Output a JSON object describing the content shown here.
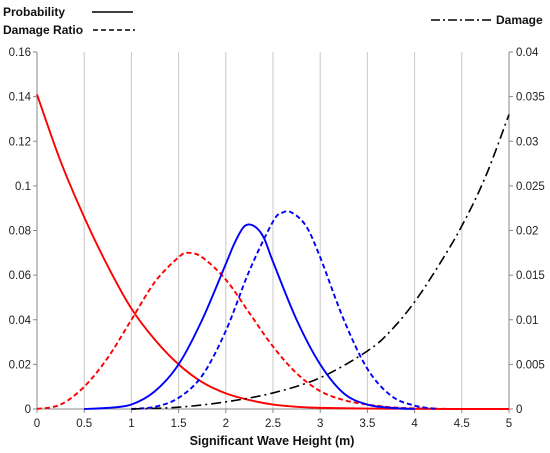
{
  "chart_data": {
    "type": "line",
    "xlabel": "Significant Wave Height (m)",
    "xlim": [
      0,
      5
    ],
    "x_ticks": [
      "0",
      "0.5",
      "1",
      "1.5",
      "2",
      "2.5",
      "3",
      "3.5",
      "4",
      "4.5",
      "5"
    ],
    "ylim_left": [
      0,
      0.16
    ],
    "y_left_ticks": [
      "0",
      "0.02",
      "0.04",
      "0.06",
      "0.08",
      "0.1",
      "0.12",
      "0.14",
      "0.16"
    ],
    "ylim_right": [
      0,
      0.04
    ],
    "y_right_ticks": [
      "0",
      "0.005",
      "0.01",
      "0.015",
      "0.02",
      "0.025",
      "0.03",
      "0.035",
      "0.04"
    ],
    "grid": "vertical",
    "legend": [
      {
        "label": "Probability",
        "style": "solid",
        "position": "top-left"
      },
      {
        "label": "Damage Ratio",
        "style": "dashed",
        "position": "top-left"
      },
      {
        "label": "Damage",
        "style": "dash-dot",
        "position": "top-right"
      }
    ],
    "series": [
      {
        "axis": "left",
        "style": "solid",
        "color": "#ff0000",
        "x": [
          0,
          0.25,
          0.5,
          0.75,
          1.0,
          1.25,
          1.5,
          1.75,
          2.0,
          2.25,
          2.5,
          2.75,
          3.0,
          3.5,
          4.0,
          4.5,
          5.0
        ],
        "y": [
          0.141,
          0.111,
          0.086,
          0.064,
          0.045,
          0.031,
          0.02,
          0.012,
          0.007,
          0.004,
          0.002,
          0.001,
          0.0005,
          0.0002,
          0.0001,
          0.0,
          0.0
        ]
      },
      {
        "axis": "left",
        "style": "dashed",
        "color": "#ff0000",
        "x": [
          0,
          0.25,
          0.5,
          0.75,
          1.0,
          1.25,
          1.5,
          1.6,
          1.75,
          2.0,
          2.25,
          2.5,
          2.75,
          3.0,
          3.25,
          3.5,
          3.75,
          4.0,
          4.5,
          5.0
        ],
        "y": [
          0.0,
          0.002,
          0.01,
          0.023,
          0.04,
          0.057,
          0.068,
          0.07,
          0.068,
          0.058,
          0.043,
          0.028,
          0.016,
          0.008,
          0.004,
          0.002,
          0.0008,
          0.0003,
          0.0,
          0.0
        ]
      },
      {
        "axis": "left",
        "style": "solid",
        "color": "#0000ff",
        "x": [
          0.5,
          0.75,
          1.0,
          1.25,
          1.5,
          1.75,
          2.0,
          2.1,
          2.2,
          2.3,
          2.4,
          2.5,
          2.75,
          3.0,
          3.25,
          3.5,
          3.75,
          4.0
        ],
        "y": [
          0.0,
          0.0005,
          0.002,
          0.008,
          0.02,
          0.04,
          0.065,
          0.075,
          0.082,
          0.082,
          0.077,
          0.066,
          0.04,
          0.02,
          0.007,
          0.002,
          0.0005,
          0.0
        ]
      },
      {
        "axis": "left",
        "style": "dashed",
        "color": "#0000ff",
        "x": [
          1.0,
          1.25,
          1.5,
          1.75,
          2.0,
          2.25,
          2.5,
          2.6,
          2.7,
          2.85,
          3.0,
          3.25,
          3.5,
          3.75,
          4.0,
          4.25
        ],
        "y": [
          0.0,
          0.001,
          0.005,
          0.015,
          0.035,
          0.062,
          0.084,
          0.088,
          0.088,
          0.082,
          0.068,
          0.04,
          0.018,
          0.006,
          0.0015,
          0.0
        ]
      },
      {
        "axis": "right",
        "style": "dash-dot",
        "color": "#000000",
        "x": [
          1.0,
          1.5,
          2.0,
          2.5,
          3.0,
          3.5,
          3.75,
          4.0,
          4.25,
          4.5,
          4.75,
          5.0
        ],
        "y": [
          0.0,
          0.0002,
          0.0008,
          0.0018,
          0.0035,
          0.0065,
          0.0088,
          0.012,
          0.016,
          0.0205,
          0.026,
          0.033
        ]
      }
    ]
  }
}
